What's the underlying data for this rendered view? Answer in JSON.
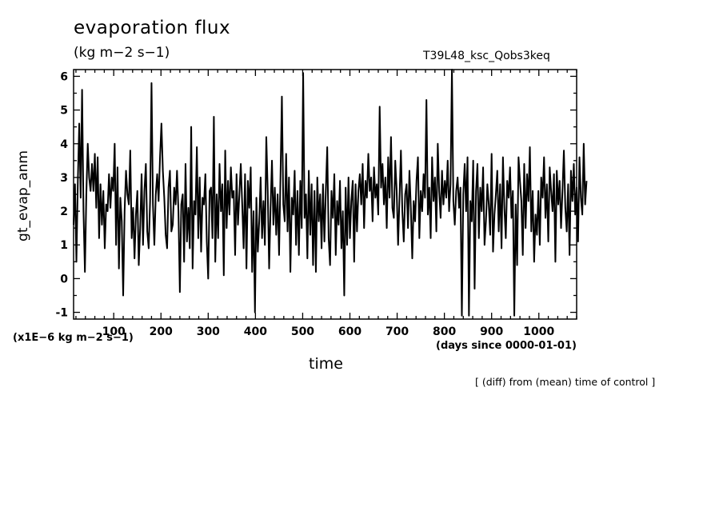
{
  "chart_data": {
    "type": "line",
    "title": "evaporation flux",
    "units": "(kg m−2 s−1)",
    "run_name": "T39L48_ksc_Qobs3keq",
    "ylabel": "gt_evap_anm",
    "xlabel": "time",
    "y_scale_note": "(x1E−6 kg m−2 s−1)",
    "x_units_note": "(days since 0000-01-01)",
    "footnote": "[ (diff) from (mean) time of control ]",
    "xlim": [
      15,
      1080
    ],
    "ylim": [
      -1.2,
      6.2
    ],
    "x_ticks": [
      100,
      200,
      300,
      400,
      500,
      600,
      700,
      800,
      900,
      1000
    ],
    "y_ticks": [
      -1,
      0,
      1,
      2,
      3,
      4,
      5,
      6
    ],
    "line_color": "#000000",
    "series": [
      {
        "x_start": 15,
        "x_step": 3,
        "values": [
          1.6,
          2.8,
          0.5,
          2.9,
          4.6,
          2.4,
          5.6,
          2.0,
          0.2,
          2.5,
          4.0,
          3.0,
          2.6,
          3.4,
          2.6,
          3.7,
          2.1,
          3.6,
          1.2,
          2.8,
          1.6,
          2.6,
          0.9,
          2.2,
          2.0,
          3.1,
          2.1,
          3.0,
          2.6,
          4.0,
          1.0,
          3.3,
          0.3,
          2.4,
          1.7,
          -0.5,
          2.0,
          3.2,
          2.5,
          2.2,
          3.8,
          1.2,
          2.1,
          0.6,
          1.9,
          2.6,
          0.4,
          1.5,
          3.1,
          1.0,
          2.6,
          3.4,
          1.4,
          0.9,
          2.3,
          5.8,
          2.2,
          1.0,
          2.5,
          3.1,
          2.3,
          3.6,
          4.6,
          3.2,
          2.4,
          1.3,
          0.9,
          2.7,
          3.2,
          1.4,
          1.6,
          2.7,
          2.2,
          3.2,
          2.0,
          -0.4,
          2.2,
          2.5,
          0.5,
          3.4,
          1.1,
          2.1,
          0.9,
          4.5,
          0.3,
          2.3,
          1.9,
          3.9,
          1.2,
          3.0,
          0.8,
          2.4,
          2.2,
          3.1,
          1.1,
          0.0,
          2.6,
          2.7,
          1.2,
          4.8,
          0.5,
          2.5,
          1.2,
          3.4,
          2.0,
          2.8,
          0.1,
          3.8,
          1.5,
          2.9,
          1.9,
          3.3,
          2.4,
          2.6,
          0.7,
          3.1,
          1.6,
          2.5,
          3.4,
          2.2,
          0.9,
          3.1,
          0.3,
          2.9,
          2.1,
          3.3,
          0.2,
          2.0,
          -1.0,
          2.4,
          0.8,
          1.7,
          3.0,
          1.2,
          2.3,
          1.0,
          4.2,
          2.6,
          0.3,
          2.1,
          3.5,
          1.6,
          2.7,
          1.3,
          2.5,
          0.7,
          3.0,
          5.4,
          2.2,
          1.7,
          3.7,
          1.4,
          3.0,
          0.2,
          2.4,
          1.9,
          3.2,
          1.0,
          2.6,
          0.7,
          2.9,
          1.5,
          6.1,
          1.8,
          2.5,
          0.6,
          3.2,
          1.3,
          2.8,
          0.4,
          2.6,
          0.2,
          3.0,
          1.7,
          2.5,
          0.9,
          2.8,
          1.1,
          2.6,
          3.9,
          1.2,
          0.4,
          2.6,
          1.8,
          3.1,
          0.7,
          2.3,
          1.6,
          2.9,
          0.9,
          2.0,
          -0.5,
          2.7,
          1.0,
          3.0,
          1.2,
          2.3,
          2.9,
          0.5,
          2.8,
          1.4,
          2.6,
          3.1,
          2.2,
          3.4,
          1.5,
          2.9,
          2.4,
          3.7,
          2.6,
          3.0,
          1.7,
          3.3,
          2.4,
          2.8,
          1.9,
          5.1,
          2.7,
          3.4,
          2.2,
          3.0,
          1.5,
          3.6,
          2.4,
          4.2,
          2.1,
          1.8,
          3.5,
          2.6,
          1.0,
          2.4,
          3.8,
          2.0,
          1.1,
          2.5,
          2.8,
          1.5,
          3.2,
          2.1,
          0.6,
          2.3,
          1.7,
          2.9,
          3.6,
          1.2,
          2.6,
          2.0,
          3.1,
          2.4,
          5.3,
          1.9,
          2.7,
          1.2,
          3.6,
          2.3,
          3.0,
          1.4,
          4.0,
          2.6,
          1.8,
          3.2,
          2.2,
          2.9,
          2.4,
          3.5,
          2.0,
          2.8,
          6.2,
          2.3,
          1.6,
          2.6,
          3.0,
          2.1,
          2.7,
          -1.1,
          2.5,
          3.4,
          2.0,
          3.6,
          -1.1,
          2.3,
          1.7,
          3.5,
          -0.3,
          2.6,
          3.4,
          1.2,
          2.7,
          2.0,
          3.3,
          1.0,
          1.7,
          2.8,
          2.2,
          1.3,
          3.7,
          0.8,
          1.9,
          2.5,
          3.2,
          1.4,
          2.8,
          0.9,
          3.6,
          2.1,
          1.2,
          2.9,
          2.4,
          3.3,
          1.8,
          2.6,
          -1.1,
          2.2,
          0.4,
          3.6,
          2.9,
          2.3,
          0.7,
          3.4,
          1.5,
          3.1,
          2.3,
          3.9,
          1.4,
          2.6,
          0.5,
          1.9,
          1.3,
          2.6,
          1.0,
          3.0,
          2.4,
          3.6,
          1.8,
          2.8,
          1.1,
          3.3,
          2.6,
          2.0,
          3.1,
          0.5,
          3.2,
          2.2,
          2.9,
          1.5,
          2.6,
          3.8,
          2.1,
          1.4,
          2.8,
          0.7,
          3.2,
          2.3,
          3.4,
          1.9,
          2.7,
          1.1,
          3.6,
          2.4,
          1.9,
          4.0,
          2.2,
          2.9
        ]
      }
    ]
  }
}
